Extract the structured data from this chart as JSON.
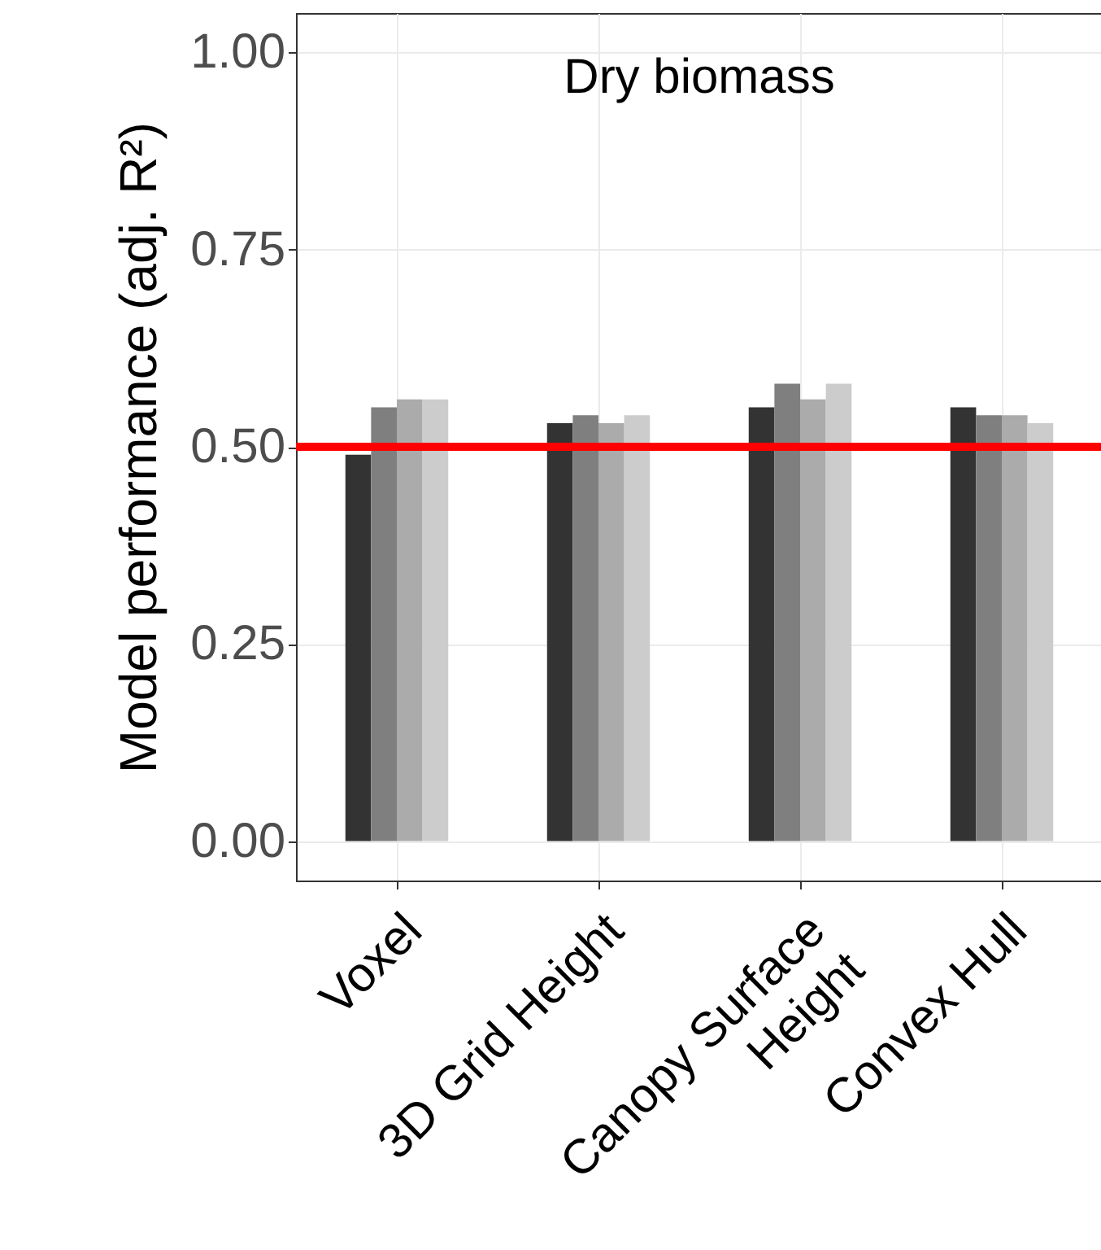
{
  "chart_data": {
    "type": "bar",
    "title": "Dry biomass",
    "ylabel": "Model performance (adj. R²)",
    "categories": [
      "Voxel",
      "3D Grid Height",
      "Canopy Surface\nHeight",
      "Convex Hull"
    ],
    "series": [
      {
        "color": "#333333",
        "values": [
          0.49,
          0.53,
          0.55,
          0.55
        ]
      },
      {
        "color": "#7f7f7f",
        "values": [
          0.55,
          0.54,
          0.58,
          0.54
        ]
      },
      {
        "color": "#ababab",
        "values": [
          0.56,
          0.53,
          0.56,
          0.54
        ]
      },
      {
        "color": "#cccccc",
        "values": [
          0.56,
          0.54,
          0.58,
          0.53
        ]
      }
    ],
    "ylim": [
      -0.05,
      1.05
    ],
    "yticks": [
      {
        "value": 0,
        "label": "0.00"
      },
      {
        "value": 0.25,
        "label": "0.25"
      },
      {
        "value": 0.5,
        "label": "0.50"
      },
      {
        "value": 0.75,
        "label": "0.75"
      },
      {
        "value": 1,
        "label": "1.00"
      }
    ],
    "ref_lines": [
      {
        "axis": "y",
        "value": 0.5,
        "color": "#ff0000"
      }
    ],
    "grid": true
  }
}
